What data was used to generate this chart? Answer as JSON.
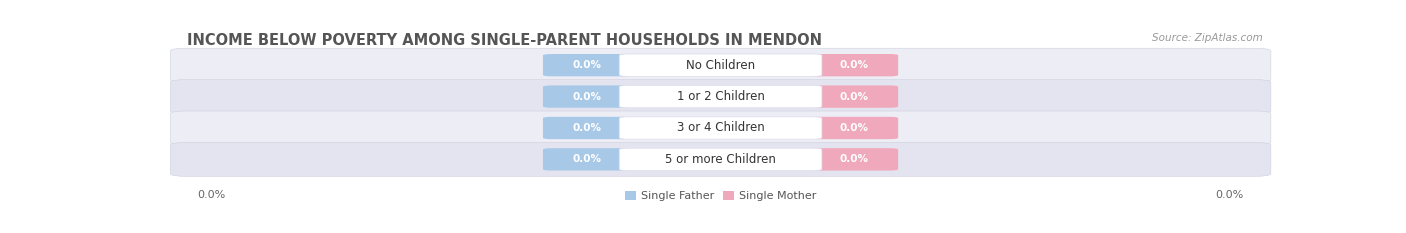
{
  "title": "INCOME BELOW POVERTY AMONG SINGLE-PARENT HOUSEHOLDS IN MENDON",
  "source": "Source: ZipAtlas.com",
  "categories": [
    "No Children",
    "1 or 2 Children",
    "3 or 4 Children",
    "5 or more Children"
  ],
  "father_values": [
    0.0,
    0.0,
    0.0,
    0.0
  ],
  "mother_values": [
    0.0,
    0.0,
    0.0,
    0.0
  ],
  "father_color": "#a8c8e8",
  "mother_color": "#f0a8bc",
  "category_bg": "#ffffff",
  "row_bg_even": "#ededf5",
  "row_bg_odd": "#e4e4f0",
  "axis_label_left": "0.0%",
  "axis_label_right": "0.0%",
  "title_fontsize": 10.5,
  "source_fontsize": 7.5,
  "label_fontsize": 8,
  "value_fontsize": 7.5,
  "category_fontsize": 8.5
}
